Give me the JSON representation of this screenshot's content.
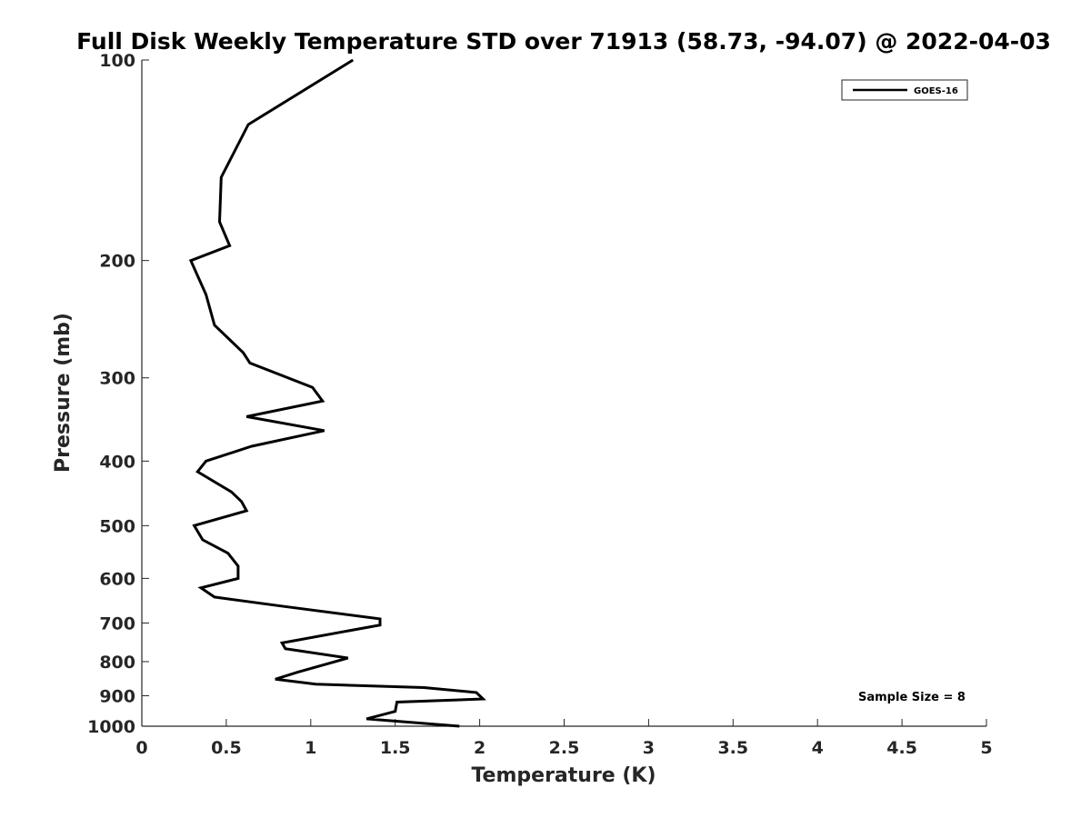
{
  "chart_data": {
    "type": "line",
    "title": "Full Disk Weekly Temperature STD over 71913 (58.73, -94.07) @ 2022-04-03",
    "xlabel": "Temperature (K)",
    "ylabel": "Pressure (mb)",
    "xlim": [
      0,
      5
    ],
    "ylim": [
      1000,
      100
    ],
    "y_scale": "log",
    "y_reversed": true,
    "grid": false,
    "x_ticks": [
      0,
      0.5,
      1,
      1.5,
      2,
      2.5,
      3,
      3.5,
      4,
      4.5,
      5
    ],
    "x_tick_labels": [
      "0",
      "0.5",
      "1",
      "1.5",
      "2",
      "2.5",
      "3",
      "3.5",
      "4",
      "4.5",
      "5"
    ],
    "y_ticks": [
      100,
      200,
      300,
      400,
      500,
      600,
      700,
      800,
      900,
      1000
    ],
    "y_tick_labels": [
      "100",
      "200",
      "300",
      "400",
      "500",
      "600",
      "700",
      "800",
      "900",
      "1000"
    ],
    "legend_position": "top-right",
    "series": [
      {
        "name": "GOES-16",
        "color": "#000000",
        "points": [
          [
            1.25,
            100
          ],
          [
            0.63,
            125
          ],
          [
            0.47,
            150
          ],
          [
            0.46,
            175
          ],
          [
            0.52,
            190
          ],
          [
            0.29,
            200
          ],
          [
            0.38,
            225
          ],
          [
            0.43,
            250
          ],
          [
            0.6,
            275
          ],
          [
            0.64,
            285
          ],
          [
            1.01,
            310
          ],
          [
            1.07,
            325
          ],
          [
            0.62,
            343
          ],
          [
            1.08,
            360
          ],
          [
            0.65,
            380
          ],
          [
            0.38,
            400
          ],
          [
            0.33,
            415
          ],
          [
            0.53,
            445
          ],
          [
            0.59,
            460
          ],
          [
            0.62,
            475
          ],
          [
            0.31,
            500
          ],
          [
            0.36,
            525
          ],
          [
            0.51,
            550
          ],
          [
            0.57,
            575
          ],
          [
            0.57,
            600
          ],
          [
            0.35,
            620
          ],
          [
            0.43,
            640
          ],
          [
            0.82,
            660
          ],
          [
            1.41,
            690
          ],
          [
            1.41,
            705
          ],
          [
            0.83,
            750
          ],
          [
            0.85,
            765
          ],
          [
            1.22,
            790
          ],
          [
            0.92,
            830
          ],
          [
            0.79,
            850
          ],
          [
            1.03,
            865
          ],
          [
            1.67,
            875
          ],
          [
            1.98,
            890
          ],
          [
            2.02,
            910
          ],
          [
            1.51,
            920
          ],
          [
            1.5,
            950
          ],
          [
            1.33,
            975
          ],
          [
            1.88,
            1000
          ]
        ]
      }
    ],
    "annotations": [
      "Sample Size = 8"
    ]
  }
}
